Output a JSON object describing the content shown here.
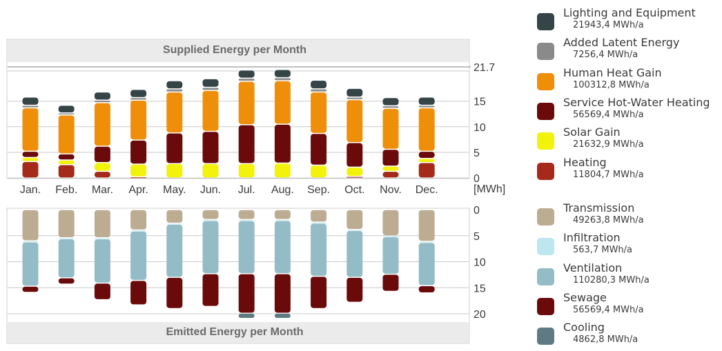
{
  "chart_data": [
    {
      "type": "bar",
      "stacked": true,
      "title": "Supplied Energy per Month",
      "categories": [
        "Jan.",
        "Feb.",
        "Mar.",
        "Apr.",
        "May.",
        "Jun.",
        "Jul.",
        "Aug.",
        "Sep.",
        "Oct.",
        "Nov.",
        "Dec."
      ],
      "unit_label": "[MWh]",
      "y_ticks": [
        0,
        5,
        10,
        15,
        21.7
      ],
      "ylim": [
        0,
        23.5
      ],
      "reference_line": 21.7,
      "series": [
        {
          "name": "Heating",
          "color": "#a52a1a",
          "values": [
            3.2,
            2.6,
            1.3,
            0.2,
            0.0,
            0.0,
            0.0,
            0.0,
            0.0,
            0.3,
            1.3,
            3.0
          ]
        },
        {
          "name": "Solar Gain",
          "color": "#f2f20a",
          "values": [
            0.8,
            0.9,
            1.7,
            2.5,
            2.8,
            2.8,
            2.8,
            2.9,
            2.5,
            1.8,
            1.0,
            0.8
          ]
        },
        {
          "name": "Service Hot-Water Heating",
          "color": "#6b0a0a",
          "values": [
            1.2,
            1.2,
            3.2,
            4.7,
            6.0,
            6.3,
            7.6,
            7.6,
            6.2,
            4.8,
            3.3,
            1.4
          ]
        },
        {
          "name": "Human Heat Gain",
          "color": "#ef8f09",
          "values": [
            8.5,
            7.6,
            8.5,
            7.8,
            8.0,
            8.0,
            8.5,
            8.5,
            8.1,
            8.4,
            8.0,
            8.5
          ]
        },
        {
          "name": "Added Latent Energy",
          "color": "#8a8a8a",
          "values": [
            0.5,
            0.4,
            0.5,
            0.5,
            0.6,
            0.6,
            0.6,
            0.6,
            0.6,
            0.5,
            0.5,
            0.5
          ]
        },
        {
          "name": "Lighting and Equipment",
          "color": "#354547",
          "values": [
            1.6,
            1.5,
            1.6,
            1.6,
            1.6,
            1.7,
            1.6,
            1.6,
            1.7,
            1.7,
            1.6,
            1.6
          ]
        }
      ]
    },
    {
      "type": "bar",
      "stacked": true,
      "inverted": true,
      "title": "Emitted Energy per Month",
      "categories": [
        "Jan.",
        "Feb.",
        "Mar.",
        "Apr.",
        "May.",
        "Jun.",
        "Jul.",
        "Aug.",
        "Sep.",
        "Oct.",
        "Nov.",
        "Dec."
      ],
      "y_ticks": [
        0,
        5,
        10,
        15,
        20
      ],
      "ylim": [
        0,
        22
      ],
      "series": [
        {
          "name": "Transmission",
          "color": "#bcad92",
          "values": [
            6.0,
            5.4,
            5.4,
            3.9,
            2.6,
            1.9,
            1.9,
            1.9,
            2.4,
            3.8,
            5.0,
            6.1
          ]
        },
        {
          "name": "Infiltration",
          "color": "#bde6f0",
          "values": [
            0.2,
            0.2,
            0.2,
            0.2,
            0.2,
            0.2,
            0.2,
            0.2,
            0.2,
            0.2,
            0.2,
            0.2
          ]
        },
        {
          "name": "Ventilation",
          "color": "#94bcc7",
          "values": [
            8.5,
            7.5,
            8.5,
            9.5,
            10.2,
            10.2,
            10.2,
            10.2,
            10.2,
            9.0,
            7.2,
            8.3
          ]
        },
        {
          "name": "Sewage",
          "color": "#6b0a0a",
          "values": [
            1.2,
            1.2,
            3.2,
            4.7,
            6.0,
            6.3,
            7.6,
            7.6,
            6.2,
            4.8,
            3.3,
            1.4
          ]
        },
        {
          "name": "Cooling",
          "color": "#5e7b83",
          "values": [
            0.0,
            0.0,
            0.0,
            0.0,
            0.0,
            0.0,
            1.0,
            1.0,
            0.0,
            0.0,
            0.0,
            0.0
          ]
        }
      ]
    }
  ],
  "legend": {
    "supplied": [
      {
        "name": "Lighting and Equipment",
        "value": "21943,4 MWh/a",
        "color": "#354547"
      },
      {
        "name": "Added Latent Energy",
        "value": "7256,4 MWh/a",
        "color": "#8a8a8a"
      },
      {
        "name": "Human Heat Gain",
        "value": "100312,8 MWh/a",
        "color": "#ef8f09"
      },
      {
        "name": "Service Hot-Water Heating",
        "value": "56569,4 MWh/a",
        "color": "#6b0a0a"
      },
      {
        "name": "Solar Gain",
        "value": "21632,9 MWh/a",
        "color": "#f2f20a"
      },
      {
        "name": "Heating",
        "value": "11804,7 MWh/a",
        "color": "#a52a1a"
      }
    ],
    "emitted": [
      {
        "name": "Transmission",
        "value": "49263,8 MWh/a",
        "color": "#bcad92"
      },
      {
        "name": "Infiltration",
        "value": "563,7 MWh/a",
        "color": "#bde6f0"
      },
      {
        "name": "Ventilation",
        "value": "110280,3 MWh/a",
        "color": "#94bcc7"
      },
      {
        "name": "Sewage",
        "value": "56569,4 MWh/a",
        "color": "#6b0a0a"
      },
      {
        "name": "Cooling",
        "value": "4862,8 MWh/a",
        "color": "#5e7b83"
      }
    ]
  }
}
